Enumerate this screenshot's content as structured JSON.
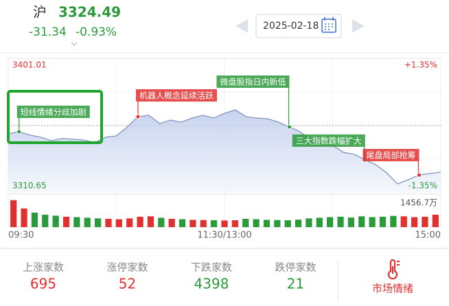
{
  "header": {
    "index_name": "沪",
    "price": 3324.49,
    "change": -31.34,
    "change_pct": "-0.93%",
    "date": "2025-02-18"
  },
  "chart_data": {
    "type": "line",
    "xlim": [
      0,
      240
    ],
    "xticks": [
      {
        "value": 0,
        "label": "09:30"
      },
      {
        "value": 120,
        "label": "11:30/13:00"
      },
      {
        "value": 240,
        "label": "15:00"
      }
    ],
    "ylim": [
      3310.65,
      3401.01
    ],
    "yticks": [
      3401.01,
      3310.65
    ],
    "y2lim": [
      -1.35,
      1.35
    ],
    "y2ticks": [
      {
        "value": 1.35,
        "label": "+1.35%"
      },
      {
        "value": -1.35,
        "label": "-1.35%"
      }
    ],
    "up_color": "#e0302f",
    "down_color": "#2a9a3a",
    "series": [
      {
        "color": "#8294bf",
        "x": [
          0,
          6,
          12,
          18,
          24,
          30,
          36,
          42,
          48,
          54,
          60,
          66,
          72,
          78,
          84,
          90,
          96,
          102,
          108,
          114,
          120,
          126,
          132,
          138,
          144,
          150,
          156,
          162,
          168,
          174,
          180,
          186,
          192,
          198,
          204,
          210,
          216,
          222,
          228,
          234,
          240
        ],
        "values": [
          3350.3,
          3351.7,
          3349.4,
          3348.0,
          3345.7,
          3347.1,
          3346.6,
          3346.1,
          3344.3,
          3348.0,
          3348.9,
          3354.9,
          3361.8,
          3362.7,
          3357.2,
          3359.5,
          3358.1,
          3360.9,
          3362.7,
          3360.9,
          3364.1,
          3366.4,
          3361.8,
          3360.9,
          3360.4,
          3358.1,
          3354.9,
          3351.7,
          3345.7,
          3343.4,
          3342.5,
          3337.8,
          3336.5,
          3332.8,
          3329.5,
          3324.0,
          3316.6,
          3319.4,
          3322.6,
          3323.6,
          3324.49
        ]
      }
    ],
    "annotations": [
      {
        "text": "短线情绪分歧加剧",
        "x": 6,
        "color": "green"
      },
      {
        "text": "机器人概念延续活跃",
        "x": 72,
        "color": "red"
      },
      {
        "text": "微盘股指日内新低",
        "x": 156,
        "color": "green"
      },
      {
        "text": "三大指数跌幅扩大",
        "x": 198,
        "color": "green"
      },
      {
        "text": "尾盘局部抢筹",
        "x": 228,
        "color": "red"
      }
    ],
    "volume": {
      "ylim": [
        0,
        1456.7
      ],
      "yticks": [
        {
          "value": 1456.7,
          "label": "1456.7万"
        }
      ],
      "values": [
        1300,
        900,
        700,
        600,
        550,
        500,
        480,
        450,
        420,
        400,
        380,
        420,
        500,
        520,
        450,
        400,
        380,
        350,
        340,
        330,
        320,
        330,
        400,
        380,
        350,
        340,
        330,
        360,
        420,
        450,
        480,
        500,
        460,
        520,
        480,
        500,
        540,
        520,
        480,
        500,
        600
      ]
    }
  },
  "stats": [
    {
      "label": "上涨家数",
      "value": 695,
      "color": "red"
    },
    {
      "label": "涨停家数",
      "value": 52,
      "color": "red"
    },
    {
      "label": "下跌家数",
      "value": 4398,
      "color": "green"
    },
    {
      "label": "跌停家数",
      "value": 21,
      "color": "green"
    }
  ],
  "mood_button": "市场情绪"
}
